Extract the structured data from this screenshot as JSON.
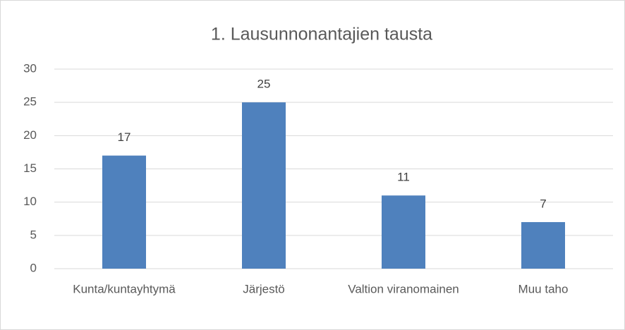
{
  "chart_data": {
    "type": "bar",
    "title": "1. Lausunnonantajien tausta",
    "categories": [
      "Kunta/kuntayhtymä",
      "Järjestö",
      "Valtion viranomainen",
      "Muu taho"
    ],
    "values": [
      17,
      25,
      11,
      7
    ],
    "color": "#4f81bd",
    "ylim": [
      0,
      30
    ],
    "yticks": [
      0,
      5,
      10,
      15,
      20,
      25,
      30
    ],
    "grid": true,
    "data_labels": true
  }
}
